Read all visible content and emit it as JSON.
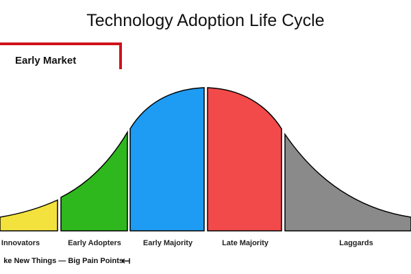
{
  "title": "Technology Adoption Life Cycle",
  "early_market": {
    "label": "Early Market",
    "bracket_color": "#d0111b"
  },
  "segments": [
    {
      "label": "Innovators",
      "color": "#f3e23d"
    },
    {
      "label": "Early Adopters",
      "color": "#2fb81d"
    },
    {
      "label": "Early Majority",
      "color": "#1e9bf2"
    },
    {
      "label": "Late Majority",
      "color": "#f24a4a"
    },
    {
      "label": "Laggards",
      "color": "#8a8a8a"
    }
  ],
  "footer": {
    "text": "ke New Things — Big Pain Points",
    "arrow_icon": "left-arrow-end-icon"
  }
}
